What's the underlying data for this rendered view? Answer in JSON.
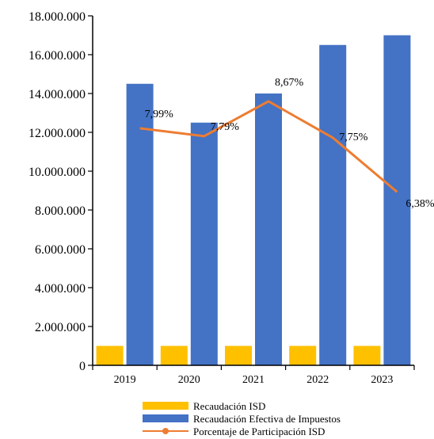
{
  "colors": {
    "isd": "#FFC000",
    "efectiva": "#4472C4",
    "porcentaje": "#ED7D31"
  },
  "chart_data": {
    "type": "bar",
    "categories": [
      "2019",
      "2020",
      "2021",
      "2022",
      "2023"
    ],
    "ylim": [
      0,
      18000000
    ],
    "y_ticks": [
      "0",
      "2.000.000",
      "4.000.000",
      "6.000.000",
      "8.000.000",
      "10.000.000",
      "12.000.000",
      "14.000.000",
      "16.000.000",
      "18.000.000"
    ],
    "legend_position": "bottom",
    "series": [
      {
        "name": "Recaudación ISD",
        "kind": "bar",
        "values": [
          1000000,
          1000000,
          1000000,
          1000000,
          1000000
        ]
      },
      {
        "name": "Recaudación Efectiva de Impuestos",
        "kind": "bar",
        "values": [
          14500000,
          12500000,
          14000000,
          16500000,
          17000000
        ]
      },
      {
        "name": "Porcentaje de Participación ISD",
        "kind": "line",
        "values": [
          7.99,
          7.79,
          8.67,
          7.75,
          6.38
        ],
        "labels": [
          "7,99%",
          "7,79%",
          "8,67%",
          "7,75%",
          "6,38%"
        ]
      }
    ]
  }
}
